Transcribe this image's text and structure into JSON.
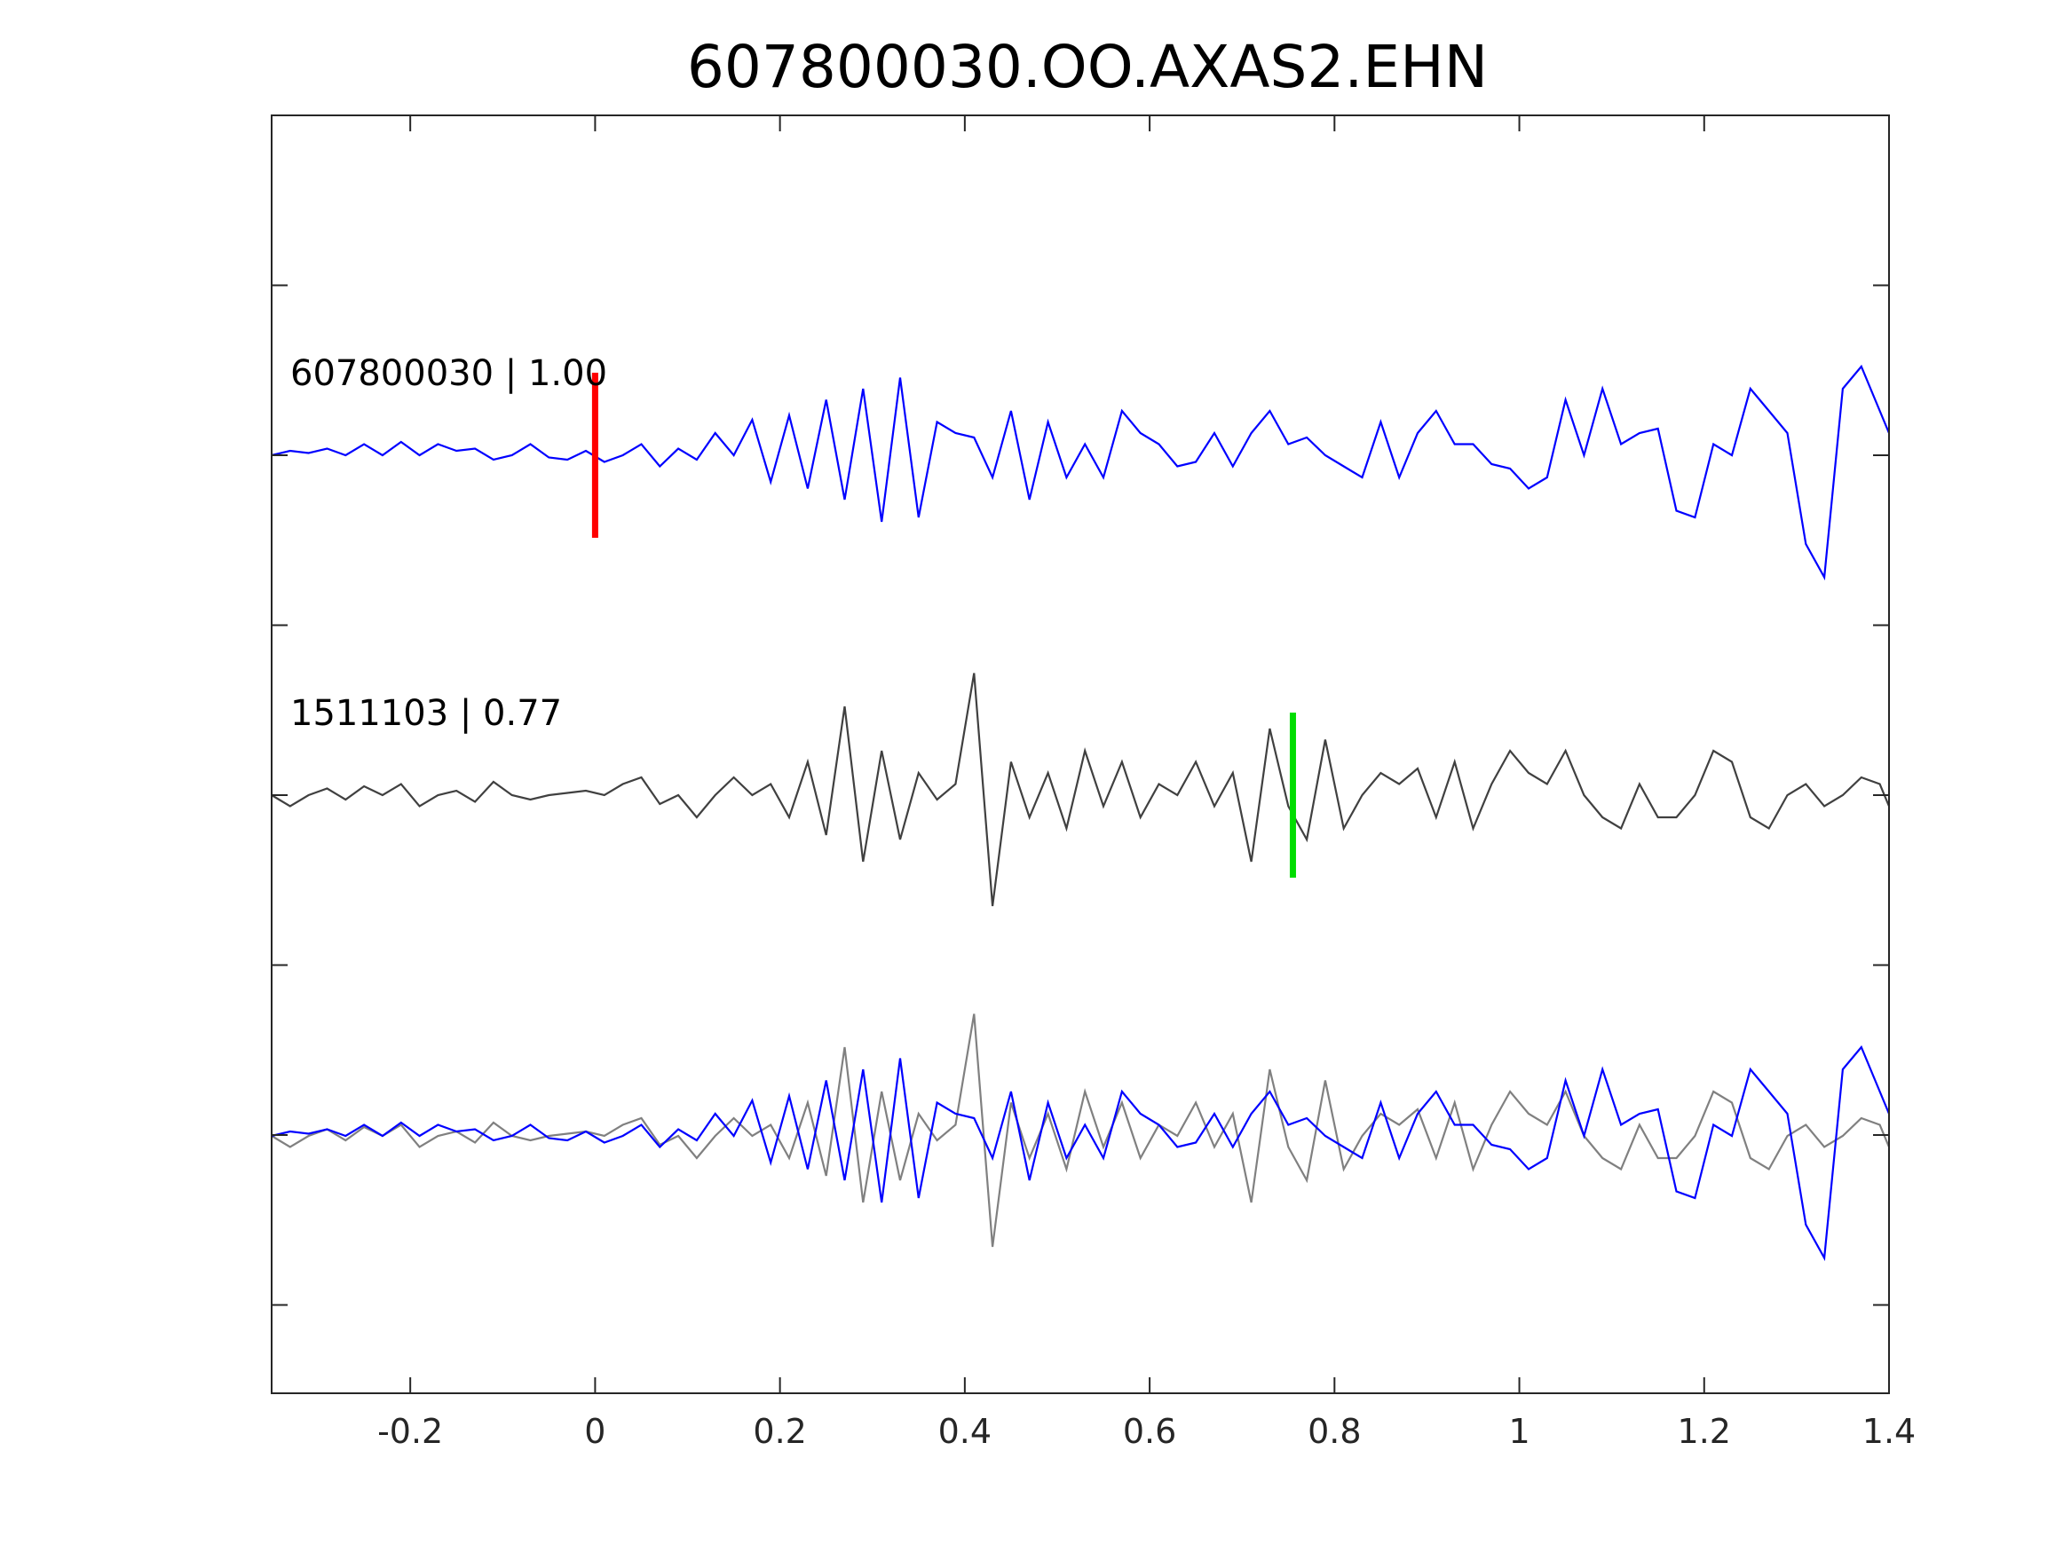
{
  "chart_data": {
    "type": "line",
    "title": "607800030.OO.AXAS2.EHN",
    "xlabel": "",
    "ylabel": "",
    "xlim": [
      -0.35,
      1.4
    ],
    "xticks": [
      -0.2,
      0,
      0.2,
      0.4,
      0.6,
      0.8,
      1,
      1.2,
      1.4
    ],
    "xtick_labels": [
      "-0.2",
      "0",
      "0.2",
      "0.4",
      "0.6",
      "0.8",
      "1",
      "1.2",
      "1.4"
    ],
    "ytick_count": 7,
    "grid": false,
    "colors": {
      "template": "#0000ff",
      "detection": "#404040",
      "overlay_detection": "#808080",
      "pick_p": "#ff0000",
      "pick_s": "#00dd00",
      "axis": "#262626"
    },
    "traces": [
      {
        "label": "607800030 | 1.00",
        "role": "template",
        "x": [
          -0.35,
          -0.33,
          -0.31,
          -0.29,
          -0.27,
          -0.25,
          -0.23,
          -0.21,
          -0.19,
          -0.17,
          -0.15,
          -0.13,
          -0.11,
          -0.09,
          -0.07,
          -0.05,
          -0.03,
          -0.01,
          0.01,
          0.03,
          0.05,
          0.07,
          0.09,
          0.11,
          0.13,
          0.15,
          0.17,
          0.19,
          0.21,
          0.23,
          0.25,
          0.27,
          0.29,
          0.31,
          0.33,
          0.35,
          0.37,
          0.39,
          0.41,
          0.43,
          0.45,
          0.47,
          0.49,
          0.51,
          0.53,
          0.55,
          0.57,
          0.59,
          0.61,
          0.63,
          0.65,
          0.67,
          0.69,
          0.71,
          0.73,
          0.75,
          0.77,
          0.79,
          0.81,
          0.83,
          0.85,
          0.87,
          0.89,
          0.91,
          0.93,
          0.95,
          0.97,
          0.99,
          1.01,
          1.03,
          1.05,
          1.07,
          1.09,
          1.11,
          1.13,
          1.15,
          1.17,
          1.19,
          1.21,
          1.23,
          1.25,
          1.27,
          1.29,
          1.31,
          1.33,
          1.35,
          1.37,
          1.39,
          1.4
        ],
        "y": [
          0.0,
          0.02,
          0.01,
          0.03,
          0.0,
          0.05,
          0.0,
          0.06,
          0.0,
          0.05,
          0.02,
          0.03,
          -0.02,
          0.0,
          0.05,
          -0.01,
          -0.02,
          0.02,
          -0.03,
          0.0,
          0.05,
          -0.05,
          0.03,
          -0.02,
          0.1,
          0.0,
          0.16,
          -0.12,
          0.18,
          -0.15,
          0.25,
          -0.2,
          0.3,
          -0.3,
          0.35,
          -0.28,
          0.15,
          0.1,
          0.08,
          -0.1,
          0.2,
          -0.2,
          0.15,
          -0.1,
          0.05,
          -0.1,
          0.2,
          0.1,
          0.05,
          -0.05,
          -0.03,
          0.1,
          -0.05,
          0.1,
          0.2,
          0.05,
          0.08,
          0.0,
          -0.05,
          -0.1,
          0.15,
          -0.1,
          0.1,
          0.2,
          0.05,
          0.05,
          -0.04,
          -0.06,
          -0.15,
          -0.1,
          0.25,
          0.0,
          0.3,
          0.05,
          0.1,
          0.12,
          -0.25,
          -0.28,
          0.05,
          0.0,
          0.3,
          0.2,
          0.1,
          -0.4,
          -0.55,
          0.3,
          0.4,
          0.2,
          0.1
        ],
        "pick": {
          "x": 0.0,
          "color": "#ff0000"
        }
      },
      {
        "label": "1511103 | 0.77",
        "role": "detection",
        "x": [
          -0.35,
          -0.33,
          -0.31,
          -0.29,
          -0.27,
          -0.25,
          -0.23,
          -0.21,
          -0.19,
          -0.17,
          -0.15,
          -0.13,
          -0.11,
          -0.09,
          -0.07,
          -0.05,
          -0.03,
          -0.01,
          0.01,
          0.03,
          0.05,
          0.07,
          0.09,
          0.11,
          0.13,
          0.15,
          0.17,
          0.19,
          0.21,
          0.23,
          0.25,
          0.27,
          0.29,
          0.31,
          0.33,
          0.35,
          0.37,
          0.39,
          0.41,
          0.43,
          0.45,
          0.47,
          0.49,
          0.51,
          0.53,
          0.55,
          0.57,
          0.59,
          0.61,
          0.63,
          0.65,
          0.67,
          0.69,
          0.71,
          0.73,
          0.75,
          0.77,
          0.79,
          0.81,
          0.83,
          0.85,
          0.87,
          0.89,
          0.91,
          0.93,
          0.95,
          0.97,
          0.99,
          1.01,
          1.03,
          1.05,
          1.07,
          1.09,
          1.11,
          1.13,
          1.15,
          1.17,
          1.19,
          1.21,
          1.23,
          1.25,
          1.27,
          1.29,
          1.31,
          1.33,
          1.35,
          1.37,
          1.39,
          1.4
        ],
        "y": [
          0.0,
          -0.05,
          0.0,
          0.03,
          -0.02,
          0.04,
          0.0,
          0.05,
          -0.05,
          0.0,
          0.02,
          -0.03,
          0.06,
          0.0,
          -0.02,
          0.0,
          0.01,
          0.02,
          0.0,
          0.05,
          0.08,
          -0.04,
          0.0,
          -0.1,
          0.0,
          0.08,
          0.0,
          0.05,
          -0.1,
          0.15,
          -0.18,
          0.4,
          -0.3,
          0.2,
          -0.2,
          0.1,
          -0.02,
          0.05,
          0.55,
          -0.5,
          0.15,
          -0.1,
          0.1,
          -0.15,
          0.2,
          -0.05,
          0.15,
          -0.1,
          0.05,
          0.0,
          0.15,
          -0.05,
          0.1,
          -0.3,
          0.3,
          -0.05,
          -0.2,
          0.25,
          -0.15,
          0.0,
          0.1,
          0.05,
          0.12,
          -0.1,
          0.15,
          -0.15,
          0.05,
          0.2,
          0.1,
          0.05,
          0.2,
          0.0,
          -0.1,
          -0.15,
          0.05,
          -0.1,
          -0.1,
          0.0,
          0.2,
          0.15,
          -0.1,
          -0.15,
          0.0,
          0.05,
          -0.05,
          0.0,
          0.08,
          0.05,
          -0.05
        ],
        "pick": {
          "x": 0.755,
          "color": "#00dd00"
        }
      }
    ]
  }
}
